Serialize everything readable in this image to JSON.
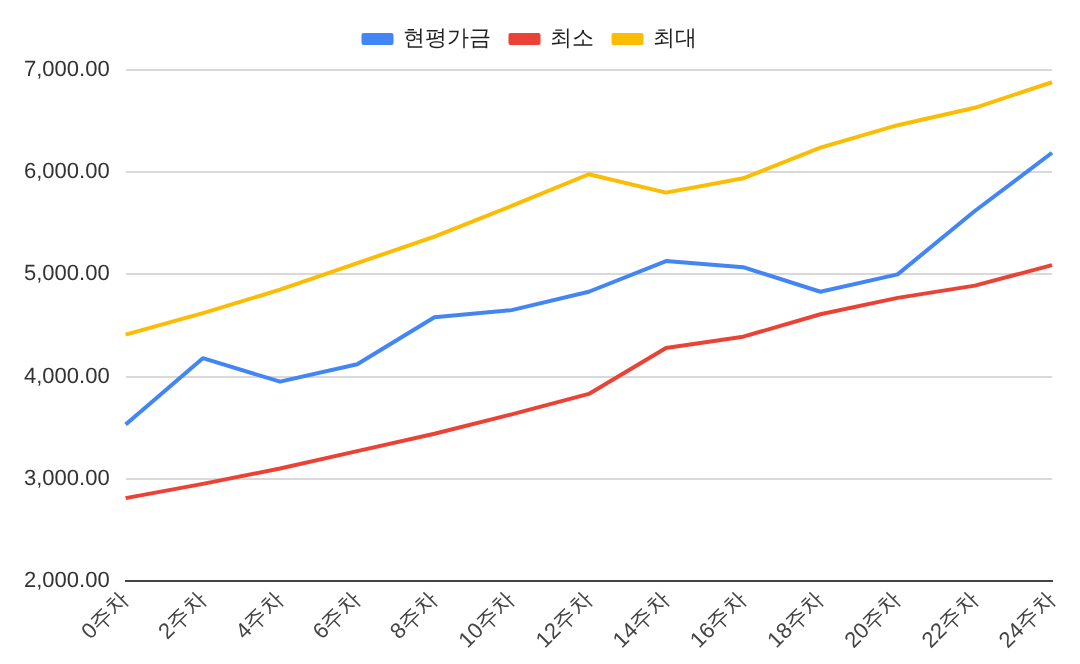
{
  "chart_data": {
    "type": "line",
    "categories": [
      "0주차",
      "2주차",
      "4주차",
      "6주차",
      "8주차",
      "10주차",
      "12주차",
      "14주차",
      "16주차",
      "18주차",
      "20주차",
      "22주차",
      "24주차"
    ],
    "series": [
      {
        "name": "현평가금",
        "color": "#4285f4",
        "values": [
          3530,
          4180,
          3950,
          4120,
          4580,
          4650,
          4830,
          5130,
          5070,
          4830,
          5000,
          5620,
          6190
        ]
      },
      {
        "name": "최소",
        "color": "#ea4335",
        "values": [
          2810,
          2950,
          3100,
          3270,
          3440,
          3630,
          3830,
          4280,
          4390,
          4610,
          4770,
          4890,
          5090
        ]
      },
      {
        "name": "최대",
        "color": "#fbbc04",
        "values": [
          4410,
          4620,
          4850,
          5110,
          5370,
          5670,
          5980,
          5800,
          5940,
          6240,
          6460,
          6630,
          6880
        ]
      }
    ],
    "ylim": [
      2000,
      7000
    ],
    "yticks": [
      {
        "value": 2000,
        "label": "2,000.00"
      },
      {
        "value": 3000,
        "label": "3,000.00"
      },
      {
        "value": 4000,
        "label": "4,000.00"
      },
      {
        "value": 5000,
        "label": "5,000.00"
      },
      {
        "value": 6000,
        "label": "6,000.00"
      },
      {
        "value": 7000,
        "label": "7,000.00"
      }
    ],
    "grid": "y",
    "legend": "top",
    "marker": "none",
    "line_style": "solid"
  }
}
